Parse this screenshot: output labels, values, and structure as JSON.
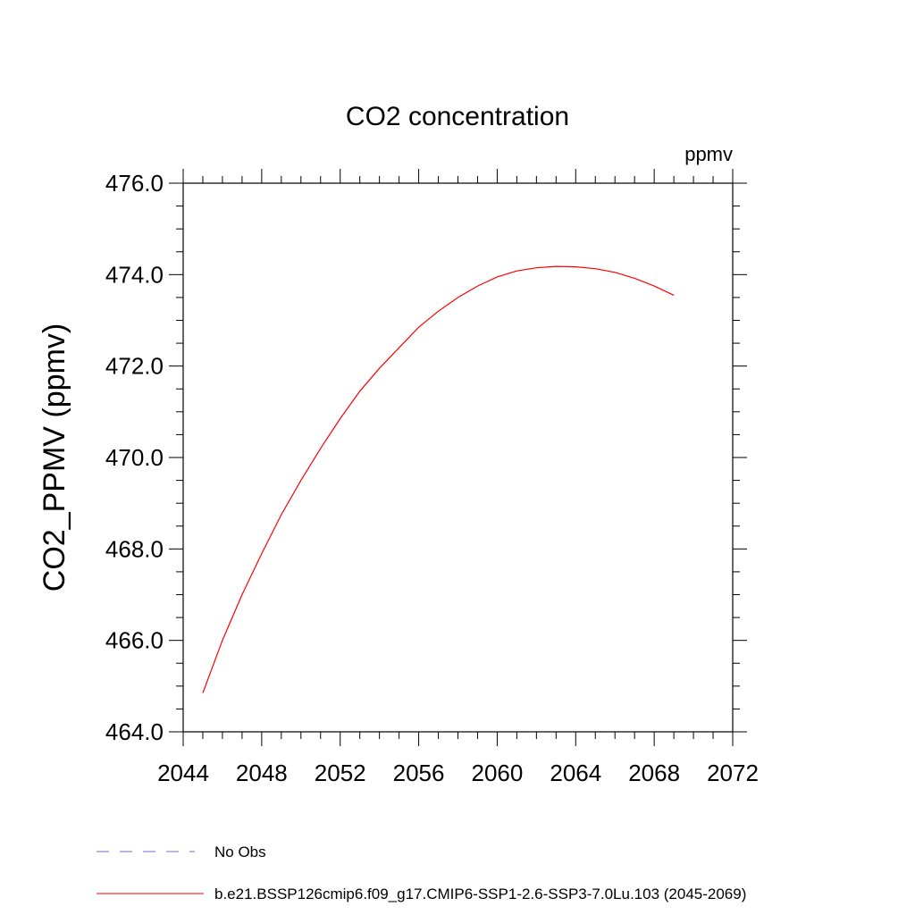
{
  "chart_data": {
    "type": "line",
    "title": "CO2 concentration",
    "units": "ppmv",
    "ylabel": "CO2_PPMV  (ppmv)",
    "xlabel": "",
    "xlim": [
      2044,
      2072
    ],
    "ylim": [
      464,
      476
    ],
    "xticks": [
      "2044",
      "2048",
      "2052",
      "2056",
      "2060",
      "2064",
      "2068",
      "2072"
    ],
    "yticks": [
      "464.0",
      "466.0",
      "468.0",
      "470.0",
      "472.0",
      "474.0",
      "476.0"
    ],
    "series": [
      {
        "name": "b.e21.BSSP126cmip6.f09_g17.CMIP6-SSP1-2.6-SSP3-7.0Lu.103 (2045-2069)",
        "color": "#ff0000",
        "x": [
          2045,
          2046,
          2047,
          2048,
          2049,
          2050,
          2051,
          2052,
          2053,
          2054,
          2055,
          2056,
          2057,
          2058,
          2059,
          2060,
          2061,
          2062,
          2063,
          2064,
          2065,
          2066,
          2067,
          2068,
          2069
        ],
        "y": [
          464.85,
          466.0,
          467.0,
          467.9,
          468.75,
          469.5,
          470.2,
          470.85,
          471.45,
          471.95,
          472.4,
          472.85,
          473.2,
          473.5,
          473.75,
          473.95,
          474.08,
          474.15,
          474.18,
          474.17,
          474.13,
          474.05,
          473.92,
          473.75,
          473.55
        ]
      }
    ],
    "legend": {
      "placement": "bottom",
      "entries": [
        {
          "label": "No Obs",
          "color": "#7b68c8",
          "style": "dashed"
        },
        {
          "label": "b.e21.BSSP126cmip6.f09_g17.CMIP6-SSP1-2.6-SSP3-7.0Lu.103 (2045-2069)",
          "color": "#ff0000",
          "style": "solid"
        }
      ]
    }
  }
}
